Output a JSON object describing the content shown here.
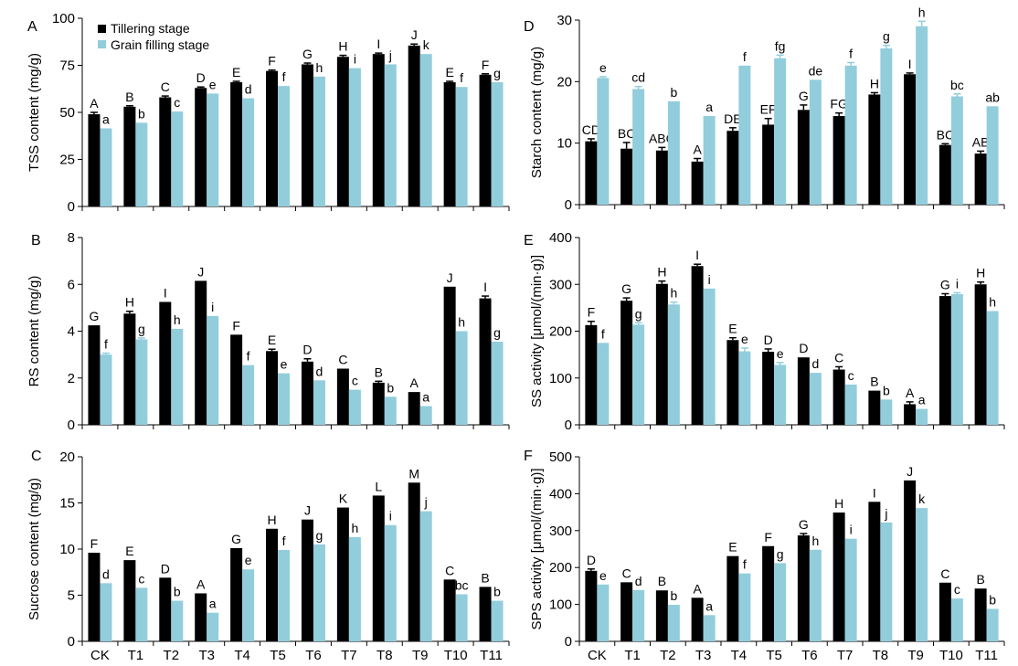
{
  "legend": {
    "tillering": "Tillering stage",
    "grain_filling": "Grain filling stage"
  },
  "colors": {
    "tillering": "#000000",
    "grain_filling": "#92cddc"
  },
  "categories": [
    "CK",
    "T1",
    "T2",
    "T3",
    "T4",
    "T5",
    "T6",
    "T7",
    "T8",
    "T9",
    "T10",
    "T11"
  ],
  "chart_data": [
    {
      "type": "bar",
      "panel": "A",
      "ylabel": "TSS content (mg/g)",
      "ylim": [
        0,
        100
      ],
      "yticks": [
        0,
        25,
        50,
        75,
        100
      ],
      "categories": [
        "CK",
        "T1",
        "T2",
        "T3",
        "T4",
        "T5",
        "T6",
        "T7",
        "T8",
        "T9",
        "T10",
        "T11"
      ],
      "series": [
        {
          "name": "Tillering stage",
          "values": [
            49,
            53,
            58,
            63,
            66,
            72,
            75.5,
            79.5,
            81,
            85.5,
            66,
            70
          ],
          "errors": [
            1,
            0.5,
            0.7,
            0.5,
            0.5,
            0.5,
            0.7,
            0.8,
            0.5,
            0.8,
            0.5,
            0.5
          ],
          "labels": [
            "A",
            "B",
            "C",
            "D",
            "E",
            "F",
            "G",
            "H",
            "I",
            "J",
            "E",
            "F"
          ]
        },
        {
          "name": "Grain filling stage",
          "values": [
            41.5,
            44.5,
            50.5,
            60,
            57.5,
            64,
            69,
            73.5,
            75.5,
            81,
            63.5,
            66
          ],
          "errors": [
            0,
            0,
            0,
            0,
            0,
            0,
            0,
            0,
            0,
            0,
            0,
            0
          ],
          "labels": [
            "a",
            "b",
            "c",
            "e",
            "d",
            "f",
            "h",
            "i",
            "j",
            "k",
            "f",
            "g"
          ]
        }
      ]
    },
    {
      "type": "bar",
      "panel": "B",
      "ylabel": "RS content (mg/g)",
      "ylim": [
        0,
        8
      ],
      "yticks": [
        0,
        2,
        4,
        6,
        8
      ],
      "categories": [
        "CK",
        "T1",
        "T2",
        "T3",
        "T4",
        "T5",
        "T6",
        "T7",
        "T8",
        "T9",
        "T10",
        "T11"
      ],
      "series": [
        {
          "name": "Tillering stage",
          "values": [
            4.25,
            4.75,
            5.25,
            6.15,
            3.85,
            3.15,
            2.7,
            2.4,
            1.8,
            1.4,
            5.9,
            5.4
          ],
          "errors": [
            0,
            0.1,
            0,
            0,
            0,
            0.08,
            0.12,
            0,
            0.06,
            0,
            0,
            0.1
          ],
          "labels": [
            "G",
            "H",
            "I",
            "J",
            "F",
            "E",
            "D",
            "C",
            "B",
            "A",
            "J",
            "I"
          ]
        },
        {
          "name": "Grain filling stage",
          "values": [
            3.0,
            3.65,
            4.1,
            4.65,
            2.55,
            2.2,
            1.9,
            1.5,
            1.2,
            0.8,
            4.0,
            3.55
          ],
          "errors": [
            0.06,
            0.06,
            0,
            0,
            0,
            0,
            0,
            0,
            0,
            0,
            0,
            0
          ],
          "labels": [
            "f",
            "g",
            "h",
            "i",
            "f",
            "e",
            "d",
            "c",
            "b",
            "a",
            "h",
            "g"
          ]
        }
      ]
    },
    {
      "type": "bar",
      "panel": "C",
      "ylabel": "Sucrose content (mg/g)",
      "ylim": [
        0,
        20
      ],
      "yticks": [
        0,
        5,
        10,
        15,
        20
      ],
      "categories": [
        "CK",
        "T1",
        "T2",
        "T3",
        "T4",
        "T5",
        "T6",
        "T7",
        "T8",
        "T9",
        "T10",
        "T11"
      ],
      "series": [
        {
          "name": "Tillering stage",
          "values": [
            9.6,
            8.8,
            6.9,
            5.2,
            10.1,
            12.2,
            13.2,
            14.5,
            15.8,
            17.2,
            6.7,
            5.9
          ],
          "errors": [
            0,
            0,
            0,
            0,
            0,
            0,
            0,
            0,
            0,
            0,
            0,
            0
          ],
          "labels": [
            "F",
            "E",
            "D",
            "A",
            "G",
            "H",
            "J",
            "K",
            "L",
            "M",
            "C",
            "B"
          ]
        },
        {
          "name": "Grain filling stage",
          "values": [
            6.3,
            5.8,
            4.4,
            3.1,
            7.8,
            9.9,
            10.5,
            11.3,
            12.6,
            14.1,
            5.1,
            4.4
          ],
          "errors": [
            0,
            0,
            0,
            0,
            0,
            0,
            0,
            0,
            0,
            0,
            0,
            0
          ],
          "labels": [
            "d",
            "c",
            "b",
            "a",
            "e",
            "f",
            "g",
            "h",
            "i",
            "j",
            "bc",
            "b"
          ]
        }
      ]
    },
    {
      "type": "bar",
      "panel": "D",
      "ylabel": "Starch content (mg/g)",
      "ylim": [
        0,
        30
      ],
      "yticks": [
        0,
        10,
        20,
        30
      ],
      "categories": [
        "CK",
        "T1",
        "T2",
        "T3",
        "T4",
        "T5",
        "T6",
        "T7",
        "T8",
        "T9",
        "T10",
        "T11"
      ],
      "series": [
        {
          "name": "Tillering stage",
          "values": [
            10.3,
            9.1,
            8.8,
            7.0,
            12.0,
            13.0,
            15.4,
            14.4,
            17.9,
            21.2,
            9.7,
            8.3
          ],
          "errors": [
            0.4,
            1.0,
            0.5,
            0.5,
            0.5,
            1.0,
            0.8,
            0.5,
            0.3,
            0.2,
            0.2,
            0.4
          ],
          "labels": [
            "CD",
            "BC",
            "ABC",
            "A",
            "DE",
            "EF",
            "G",
            "FG",
            "H",
            "I",
            "BC",
            "AB"
          ]
        },
        {
          "name": "Grain filling stage",
          "values": [
            20.6,
            18.8,
            16.8,
            14.4,
            22.6,
            23.8,
            20.3,
            22.6,
            25.4,
            29.0,
            17.6,
            16.0
          ],
          "errors": [
            0.2,
            0.4,
            0,
            0,
            0,
            0.5,
            0,
            0.5,
            0.5,
            0.8,
            0.4,
            0
          ],
          "labels": [
            "e",
            "cd",
            "b",
            "a",
            "f",
            "fg",
            "de",
            "f",
            "g",
            "h",
            "bc",
            "ab"
          ]
        }
      ]
    },
    {
      "type": "bar",
      "panel": "E",
      "ylabel": "SS activity [μmol/(min·g)]",
      "ylim": [
        0,
        400
      ],
      "yticks": [
        0,
        100,
        200,
        300,
        400
      ],
      "categories": [
        "CK",
        "T1",
        "T2",
        "T3",
        "T4",
        "T5",
        "T6",
        "T7",
        "T8",
        "T9",
        "T10",
        "T11"
      ],
      "series": [
        {
          "name": "Tillering stage",
          "values": [
            213,
            265,
            301,
            339,
            181,
            156,
            144,
            118,
            73,
            44,
            275,
            300
          ],
          "errors": [
            8,
            6,
            6,
            4,
            5,
            6,
            0,
            6,
            0,
            5,
            5,
            5
          ],
          "labels": [
            "F",
            "G",
            "H",
            "I",
            "E",
            "D",
            "D",
            "C",
            "B",
            "A",
            "G",
            "H"
          ]
        },
        {
          "name": "Grain filling stage",
          "values": [
            175,
            214,
            257,
            291,
            157,
            128,
            111,
            86,
            54,
            34,
            279,
            243
          ],
          "errors": [
            0,
            4,
            5,
            0,
            7,
            5,
            0,
            0,
            0,
            0,
            3,
            0
          ],
          "labels": [
            "f",
            "g",
            "h",
            "i",
            "e",
            "e",
            "d",
            "c",
            "b",
            "a",
            "i",
            "h"
          ]
        }
      ]
    },
    {
      "type": "bar",
      "panel": "F",
      "ylabel": "SPS activity [μmol/(min·g)]",
      "ylim": [
        0,
        500
      ],
      "yticks": [
        0,
        100,
        200,
        300,
        400,
        500
      ],
      "categories": [
        "CK",
        "T1",
        "T2",
        "T3",
        "T4",
        "T5",
        "T6",
        "T7",
        "T8",
        "T9",
        "T10",
        "T11"
      ],
      "series": [
        {
          "name": "Tillering stage",
          "values": [
            191,
            160,
            138,
            118,
            231,
            258,
            287,
            349,
            378,
            436,
            159,
            143
          ],
          "errors": [
            5,
            0,
            0,
            0,
            0,
            0,
            5,
            0,
            0,
            0,
            0,
            0
          ],
          "labels": [
            "D",
            "C",
            "B",
            "A",
            "E",
            "F",
            "G",
            "H",
            "I",
            "J",
            "C",
            "B"
          ]
        },
        {
          "name": "Grain filling stage",
          "values": [
            154,
            139,
            99,
            71,
            184,
            212,
            248,
            278,
            322,
            361,
            116,
            88
          ],
          "errors": [
            0,
            0,
            0,
            0,
            0,
            0,
            0,
            0,
            0,
            0,
            0,
            0
          ],
          "labels": [
            "e",
            "d",
            "b",
            "a",
            "f",
            "g",
            "h",
            "i",
            "j",
            "k",
            "c",
            "b"
          ]
        }
      ]
    }
  ]
}
